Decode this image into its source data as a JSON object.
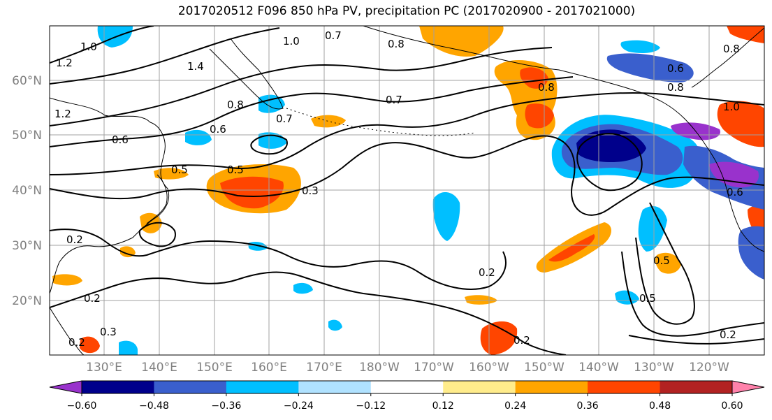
{
  "title": "2017020512 F096 850 hPa PV, precipitation PC (2017020900 - 2017021000)",
  "lat_labels": [
    "60°N",
    "50°N",
    "40°N",
    "30°N",
    "20°N"
  ],
  "lon_labels": [
    "130°E",
    "140°E",
    "150°E",
    "160°E",
    "170°E",
    "180°W",
    "170°W",
    "160°W",
    "150°W",
    "140°W",
    "130°W",
    "120°W"
  ],
  "colorbar": {
    "levels": [
      "−0.60",
      "−0.48",
      "−0.36",
      "−0.24",
      "−0.12",
      "0.12",
      "0.24",
      "0.36",
      "0.48",
      "0.60"
    ],
    "colors": [
      "#9932cc",
      "#00008b",
      "#3a5fcd",
      "#00bfff",
      "#b0e2ff",
      "#ffffff",
      "#ffec8b",
      "#ffa500",
      "#ff4500",
      "#b22222",
      "#ff82ab"
    ]
  },
  "contour_labels": [
    "1.0",
    "0.7",
    "0.8",
    "1.2",
    "1.4",
    "1.0",
    "0.8",
    "0.7",
    "0.6",
    "1.2",
    "0.6",
    "0.8",
    "0.5",
    "0.7",
    "0.5",
    "0.3",
    "0.2",
    "0.2",
    "0.3",
    "0.2",
    "0.2",
    "0.2",
    "0.5",
    "0.5",
    "0.2",
    "0.6",
    "0.8",
    "1.0",
    "0.6",
    "0.8"
  ],
  "colors": {
    "grid": "#a0a0a0",
    "coast": "#000000",
    "contour": "#000000"
  }
}
